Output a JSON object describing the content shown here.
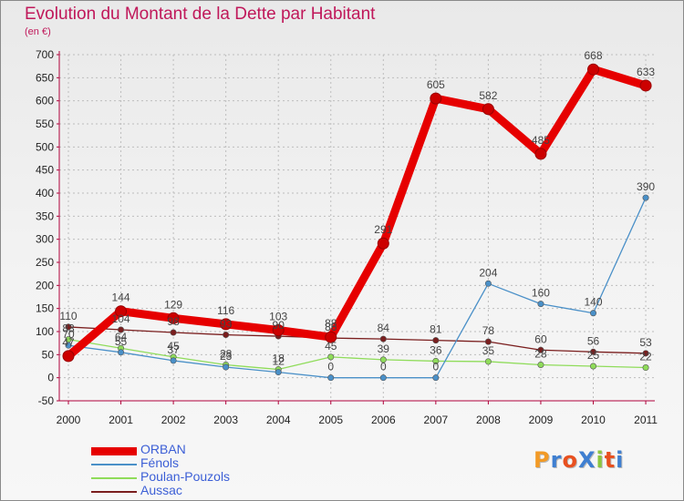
{
  "header": {
    "title": "Evolution du Montant de la Dette par Habitant",
    "subtitle": "(en €)"
  },
  "logo": {
    "text": "ProXiti",
    "letter_colors": [
      "#f29a26",
      "#3f7fd1",
      "#e8501f",
      "#3f7fd1",
      "#8cc63f",
      "#e8501f",
      "#3f7fd1"
    ]
  },
  "chart_data": {
    "type": "line",
    "title": "Evolution du Montant de la Dette par Habitant",
    "subtitle": "(en €)",
    "x": [
      "2000",
      "2001",
      "2002",
      "2003",
      "2004",
      "2005",
      "2006",
      "2007",
      "2008",
      "2009",
      "2010",
      "2011"
    ],
    "y_ticks": [
      "-50",
      "0",
      "50",
      "100",
      "150",
      "200",
      "250",
      "300",
      "350",
      "400",
      "450",
      "500",
      "550",
      "600",
      "650",
      "700"
    ],
    "ylim": [
      -50,
      700
    ],
    "grid": true,
    "legend_position": "bottom-left",
    "series": [
      {
        "name": "ORBAN",
        "color": "#e60000",
        "emphasis": "thick",
        "values": [
          47,
          144,
          129,
          116,
          103,
          88,
          291,
          605,
          582,
          485,
          668,
          633
        ],
        "labels": [
          "47",
          "144",
          "129",
          "116",
          "103",
          "88",
          "291",
          "605",
          "582",
          "485",
          "668",
          "633"
        ]
      },
      {
        "name": "Fénols",
        "color": "#4a90c8",
        "emphasis": "thin",
        "values": [
          70,
          55,
          37,
          23,
          12,
          0,
          0,
          0,
          204,
          160,
          140,
          390
        ],
        "labels": [
          "70",
          "55",
          "37",
          "23",
          "12",
          "0",
          "0",
          "0",
          "204",
          "160",
          "140",
          "390"
        ]
      },
      {
        "name": "Poulan-Pouzols",
        "color": "#8fdc5a",
        "emphasis": "thin",
        "values": [
          83,
          64,
          45,
          28,
          18,
          45,
          39,
          36,
          35,
          28,
          25,
          22
        ],
        "labels": [
          "83",
          "64",
          "45",
          "28",
          "18",
          "45",
          "39",
          "36",
          "35",
          "28",
          "25",
          "22"
        ]
      },
      {
        "name": "Aussac",
        "color": "#7a1e1e",
        "emphasis": "thin",
        "values": [
          110,
          104,
          98,
          93,
          90,
          86,
          84,
          81,
          78,
          60,
          56,
          53
        ],
        "labels": [
          "110",
          "104",
          "98",
          "93",
          "90",
          "86",
          "84",
          "81",
          "78",
          "60",
          "56",
          "53"
        ]
      }
    ]
  }
}
